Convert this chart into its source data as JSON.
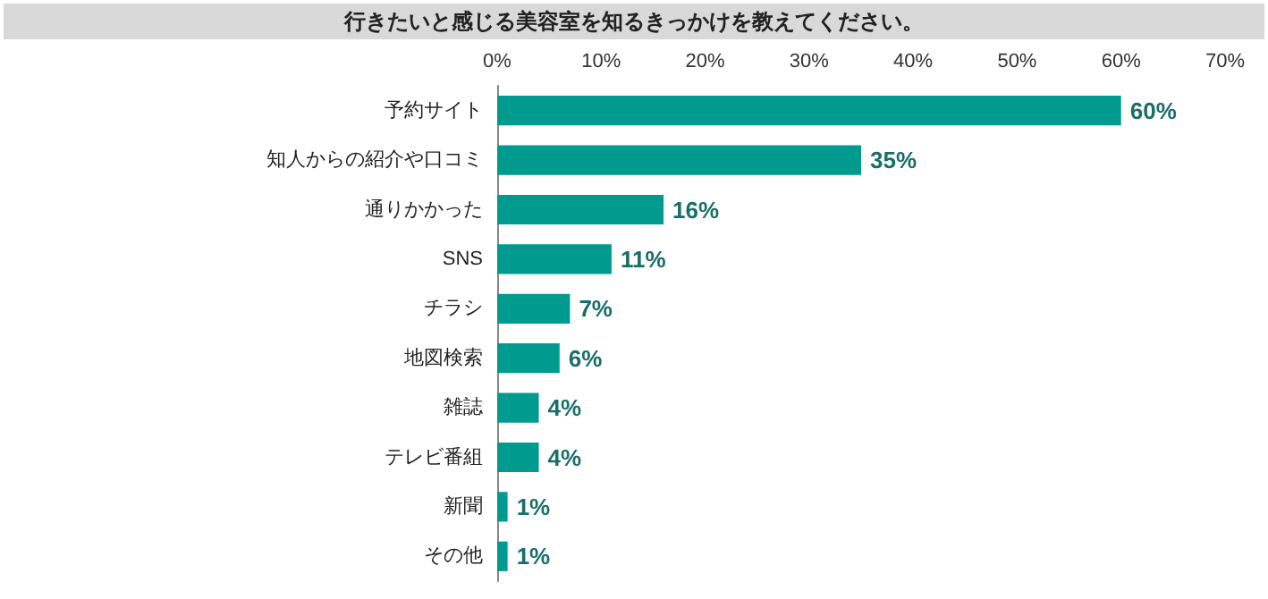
{
  "chart_data": {
    "type": "bar",
    "orientation": "horizontal",
    "title": "行きたいと感じる美容室を知るきっかけを教えてください。",
    "categories": [
      "予約サイト",
      "知人からの紹介や口コミ",
      "通りかかった",
      "SNS",
      "チラシ",
      "地図検索",
      "雑誌",
      "テレビ番組",
      "新聞",
      "その他"
    ],
    "values": [
      60,
      35,
      16,
      11,
      7,
      6,
      4,
      4,
      1,
      1
    ],
    "value_labels": [
      "60%",
      "35%",
      "16%",
      "11%",
      "7%",
      "6%",
      "4%",
      "4%",
      "1%",
      "1%"
    ],
    "color": "#009a8e",
    "xlim": [
      0,
      70
    ],
    "xticks": [
      {
        "value": 0,
        "label": "0%"
      },
      {
        "value": 10,
        "label": "10%"
      },
      {
        "value": 20,
        "label": "20%"
      },
      {
        "value": 30,
        "label": "30%"
      },
      {
        "value": 40,
        "label": "40%"
      },
      {
        "value": 50,
        "label": "50%"
      },
      {
        "value": 60,
        "label": "60%"
      },
      {
        "value": 70,
        "label": "70%"
      }
    ],
    "grid": false
  }
}
